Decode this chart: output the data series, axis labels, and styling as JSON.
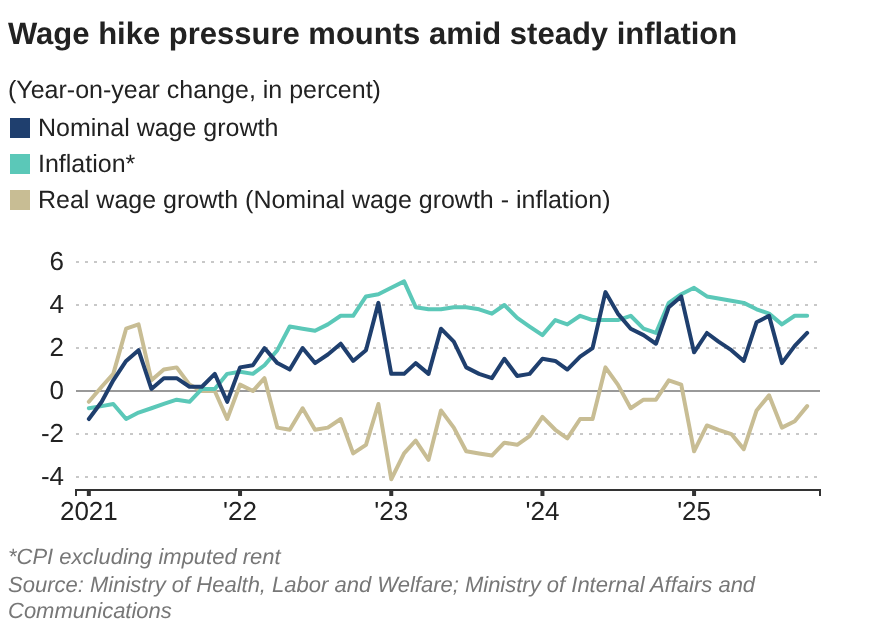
{
  "chart_data": {
    "type": "line",
    "title": "Wage hike pressure mounts amid steady inflation",
    "subtitle": "(Year-on-year change, in percent)",
    "x": [
      "2021-01",
      "2021-02",
      "2021-03",
      "2021-04",
      "2021-05",
      "2021-06",
      "2021-07",
      "2021-08",
      "2021-09",
      "2021-10",
      "2021-11",
      "2021-12",
      "2022-01",
      "2022-02",
      "2022-03",
      "2022-04",
      "2022-05",
      "2022-06",
      "2022-07",
      "2022-08",
      "2022-09",
      "2022-10",
      "2022-11",
      "2022-12",
      "2023-01",
      "2023-02",
      "2023-03",
      "2023-04",
      "2023-05",
      "2023-06",
      "2023-07",
      "2023-08",
      "2023-09",
      "2023-10",
      "2023-11",
      "2023-12",
      "2024-01",
      "2024-02",
      "2024-03",
      "2024-04",
      "2024-05",
      "2024-06",
      "2024-07",
      "2024-08",
      "2024-09",
      "2024-10",
      "2024-11",
      "2024-12",
      "2025-01",
      "2025-02",
      "2025-03",
      "2025-04",
      "2025-05",
      "2025-06",
      "2025-07",
      "2025-08",
      "2025-09",
      "2025-10"
    ],
    "series": [
      {
        "name": "Nominal wage growth",
        "color": "#1f3f6e",
        "values": [
          -1.3,
          -0.5,
          0.5,
          1.4,
          1.9,
          0.1,
          0.6,
          0.6,
          0.2,
          0.2,
          0.8,
          -0.5,
          1.1,
          1.2,
          2.0,
          1.3,
          1.0,
          2.0,
          1.3,
          1.7,
          2.2,
          1.4,
          1.9,
          4.1,
          0.8,
          0.8,
          1.3,
          0.8,
          2.9,
          2.3,
          1.1,
          0.8,
          0.6,
          1.5,
          0.7,
          0.8,
          1.5,
          1.4,
          1.0,
          1.6,
          2.0,
          4.6,
          3.6,
          2.9,
          2.6,
          2.2,
          3.9,
          4.4,
          1.8,
          2.7,
          2.3,
          1.9,
          1.4,
          3.2,
          3.5,
          1.3,
          2.1,
          2.7
        ]
      },
      {
        "name": "Inflation*",
        "color": "#5bc8b8",
        "values": [
          -0.8,
          -0.7,
          -0.6,
          -1.3,
          -1.0,
          -0.8,
          -0.6,
          -0.4,
          -0.5,
          0.1,
          0.1,
          0.8,
          0.9,
          0.8,
          1.2,
          1.9,
          3.0,
          2.9,
          2.8,
          3.1,
          3.5,
          3.5,
          4.4,
          4.5,
          4.8,
          5.1,
          3.9,
          3.8,
          3.8,
          3.9,
          3.9,
          3.8,
          3.6,
          4.0,
          3.4,
          3.0,
          2.6,
          3.3,
          3.1,
          3.5,
          3.3,
          3.3,
          3.3,
          3.5,
          2.9,
          2.7,
          4.1,
          4.5,
          4.8,
          4.4,
          4.3,
          4.2,
          4.1,
          3.8,
          3.6,
          3.1,
          3.5,
          3.5
        ]
      },
      {
        "name": "Real wage growth (Nominal wage growth - inflation)",
        "color": "#c8bd94",
        "values": [
          -0.5,
          0.2,
          0.8,
          2.9,
          3.1,
          0.5,
          1.0,
          1.1,
          0.3,
          0.0,
          0.0,
          -1.3,
          0.3,
          0.0,
          0.6,
          -1.7,
          -1.8,
          -0.8,
          -1.8,
          -1.7,
          -1.3,
          -2.9,
          -2.5,
          -0.6,
          -4.1,
          -2.9,
          -2.3,
          -3.2,
          -0.9,
          -1.7,
          -2.8,
          -2.9,
          -3.0,
          -2.4,
          -2.5,
          -2.1,
          -1.2,
          -1.8,
          -2.2,
          -1.3,
          -1.3,
          1.1,
          0.3,
          -0.8,
          -0.4,
          -0.4,
          0.5,
          0.3,
          -2.8,
          -1.6,
          -1.8,
          -2.0,
          -2.7,
          -0.9,
          -0.2,
          -1.7,
          -1.4,
          -0.7
        ]
      }
    ],
    "xlim": [
      "2020-12",
      "2025-11"
    ],
    "xticks": [
      {
        "value": "2021-01",
        "label": "2021"
      },
      {
        "value": "2022-01",
        "label": "'22"
      },
      {
        "value": "2023-01",
        "label": "'23"
      },
      {
        "value": "2024-01",
        "label": "'24"
      },
      {
        "value": "2025-01",
        "label": "'25"
      }
    ],
    "ylim": [
      -4.6,
      6
    ],
    "yticks": [
      -4,
      -2,
      0,
      2,
      4,
      6
    ],
    "grid": "y",
    "legend": "top",
    "marker": "none",
    "line_style": "solid",
    "ref_lines": [
      {
        "axis": "y",
        "value": 0,
        "color": "#999999"
      }
    ],
    "annotations": [
      "*CPI excluding imputed rent",
      "Source: Ministry of Health, Labor and Welfare; Ministry of Internal Affairs and Communications"
    ]
  }
}
